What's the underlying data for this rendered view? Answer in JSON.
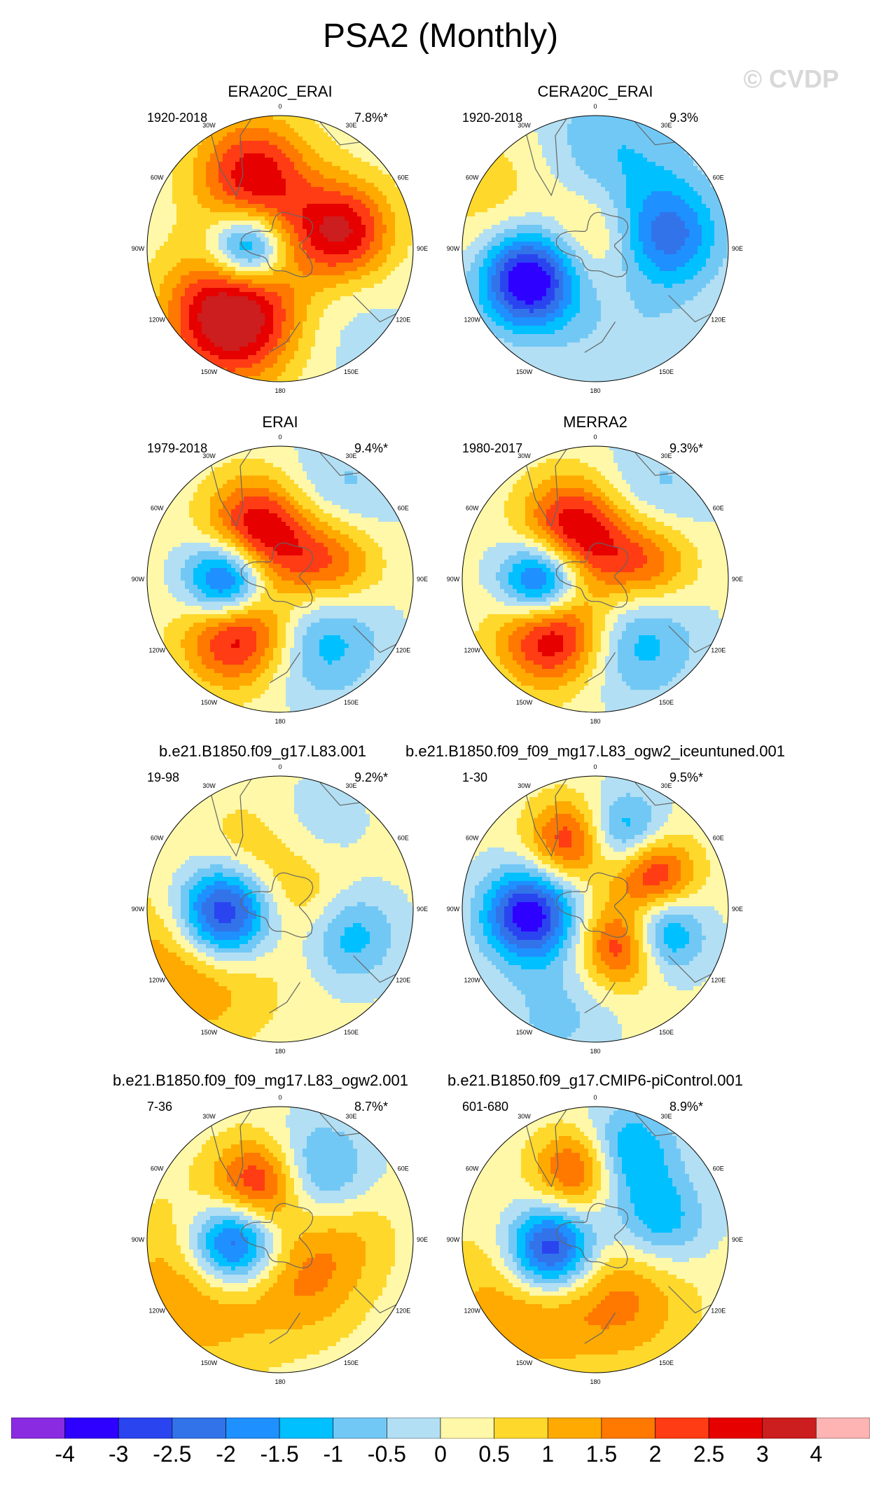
{
  "title": "PSA2 (Monthly)",
  "watermark": "© CVDP",
  "lon_labels": [
    "0",
    "30E",
    "60E",
    "90E",
    "120E",
    "150E",
    "180",
    "150W",
    "120W",
    "90W",
    "60W",
    "30W"
  ],
  "panels": [
    {
      "name": "ERA20C_ERAI",
      "range": "1920-2018",
      "pct": "7.8%*",
      "blobs": [
        [
          -20,
          0.6,
          2.6,
          0.3
        ],
        [
          -145,
          0.62,
          3.8,
          0.34
        ],
        [
          75,
          0.5,
          2.7,
          0.26
        ],
        [
          -90,
          0.24,
          -3.2,
          0.2
        ],
        [
          30,
          0.15,
          0.7,
          0.3
        ],
        [
          140,
          0.75,
          -0.4,
          0.4
        ]
      ]
    },
    {
      "name": "CERA20C_ERAI",
      "range": "1920-2018",
      "pct": "9.3%",
      "blobs": [
        [
          -115,
          0.55,
          -4.0,
          0.26
        ],
        [
          80,
          0.55,
          -2.3,
          0.28
        ],
        [
          10,
          0.72,
          -1.2,
          0.42
        ],
        [
          0,
          0.1,
          1.1,
          0.28
        ],
        [
          -60,
          0.85,
          0.7,
          0.4
        ],
        [
          160,
          0.8,
          -0.6,
          0.4
        ]
      ]
    },
    {
      "name": "ERAI",
      "range": "1979-2018",
      "pct": "9.4%*",
      "blobs": [
        [
          -25,
          0.45,
          2.6,
          0.26
        ],
        [
          -140,
          0.5,
          3.2,
          0.28
        ],
        [
          75,
          0.45,
          1.6,
          0.24
        ],
        [
          -95,
          0.4,
          -3.8,
          0.22
        ],
        [
          145,
          0.55,
          -1.5,
          0.32
        ],
        [
          35,
          0.8,
          -0.8,
          0.32
        ],
        [
          30,
          0.2,
          1.2,
          0.25
        ]
      ]
    },
    {
      "name": "MERRA2",
      "range": "1980-2017",
      "pct": "9.3%*",
      "blobs": [
        [
          -25,
          0.45,
          2.6,
          0.26
        ],
        [
          -140,
          0.5,
          3.4,
          0.28
        ],
        [
          75,
          0.45,
          1.6,
          0.24
        ],
        [
          -95,
          0.4,
          -3.8,
          0.22
        ],
        [
          145,
          0.55,
          -1.5,
          0.32
        ],
        [
          35,
          0.8,
          -0.8,
          0.32
        ],
        [
          30,
          0.2,
          1.2,
          0.25
        ]
      ]
    },
    {
      "name": "b.e21.B1850.f09_g17.L83.001",
      "range": "19-98",
      "pct": "9.2%*",
      "blobs": [
        [
          -95,
          0.42,
          -4.2,
          0.26
        ],
        [
          -120,
          0.75,
          1.7,
          0.42
        ],
        [
          110,
          0.55,
          -1.6,
          0.25
        ],
        [
          20,
          0.55,
          -0.9,
          0.3
        ],
        [
          -20,
          0.45,
          1.0,
          0.3
        ],
        [
          60,
          0.25,
          1.0,
          0.3
        ]
      ]
    },
    {
      "name": "b.e21.B1850.f09_f09_mg17.L83_ogw2_iceuntuned.001",
      "range": "1-30",
      "pct": "9.5%*",
      "blobs": [
        [
          -95,
          0.5,
          -3.6,
          0.24
        ],
        [
          -20,
          0.55,
          2.4,
          0.22
        ],
        [
          60,
          0.5,
          2.8,
          0.22
        ],
        [
          140,
          0.35,
          3.0,
          0.22
        ],
        [
          20,
          0.6,
          -2.0,
          0.22
        ],
        [
          110,
          0.5,
          -2.8,
          0.22
        ],
        [
          -160,
          0.85,
          -0.8,
          0.3
        ]
      ]
    },
    {
      "name": "b.e21.B1850.f09_f09_mg17.L83_ogw2.001",
      "range": "7-36",
      "pct": "8.7%*",
      "blobs": [
        [
          -95,
          0.35,
          -3.5,
          0.23
        ],
        [
          -20,
          0.45,
          2.6,
          0.24
        ],
        [
          30,
          0.55,
          -1.8,
          0.28
        ],
        [
          -120,
          0.7,
          1.4,
          0.45
        ],
        [
          150,
          0.4,
          1.0,
          0.3
        ],
        [
          80,
          0.45,
          1.0,
          0.3
        ]
      ]
    },
    {
      "name": "b.e21.B1850.f09_g17.CMIP6-piControl.001",
      "range": "601-680",
      "pct": "8.9%*",
      "blobs": [
        [
          -105,
          0.35,
          -4.0,
          0.24
        ],
        [
          -15,
          0.55,
          2.2,
          0.22
        ],
        [
          20,
          0.7,
          -1.8,
          0.25
        ],
        [
          75,
          0.5,
          -1.6,
          0.25
        ],
        [
          -130,
          0.65,
          1.6,
          0.4
        ],
        [
          150,
          0.5,
          1.3,
          0.35
        ]
      ]
    }
  ],
  "colorbar": {
    "colors": [
      "#8a2be2",
      "#2d00ff",
      "#2a45f0",
      "#3273ea",
      "#1e90ff",
      "#00c0ff",
      "#72c8f5",
      "#b2dff3",
      "#fff8a8",
      "#ffd82c",
      "#ffaa00",
      "#ff7800",
      "#ff3c14",
      "#e60000",
      "#cc1e1e",
      "#ffb4b4"
    ],
    "labels": [
      "-4",
      "-3",
      "-2.5",
      "-2",
      "-1.5",
      "-1",
      "-0.5",
      "0",
      "0.5",
      "1",
      "1.5",
      "2",
      "2.5",
      "3",
      "4"
    ],
    "levels": [
      -4,
      -3,
      -2.5,
      -2,
      -1.5,
      -1,
      -0.5,
      0,
      0.5,
      1,
      1.5,
      2,
      2.5,
      3,
      4
    ]
  }
}
